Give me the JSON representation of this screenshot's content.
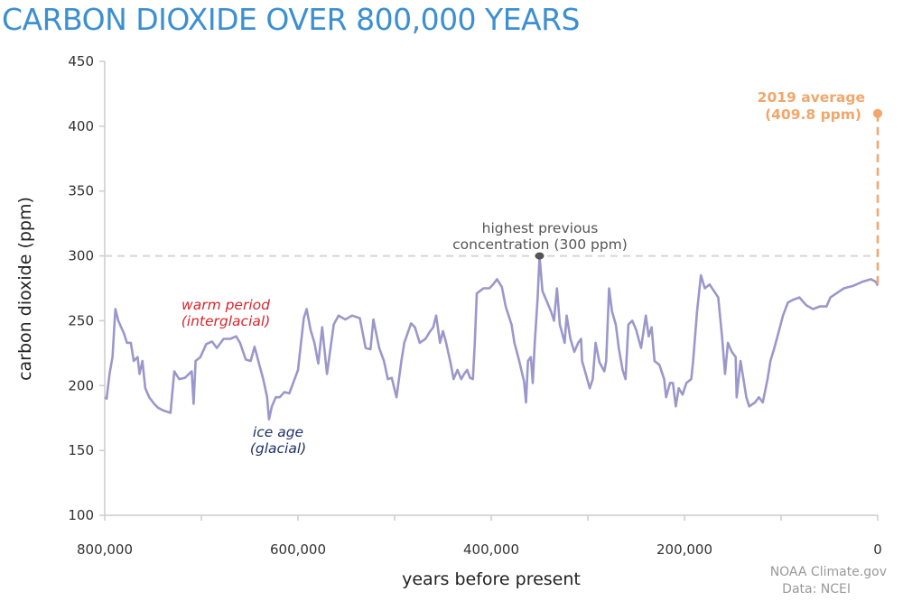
{
  "chart_data": {
    "type": "line",
    "title": "CARBON DIOXIDE OVER 800,000 YEARS",
    "xlabel": "years before present",
    "ylabel": "carbon dioxide (ppm)",
    "xlim": [
      800000,
      0
    ],
    "ylim": [
      100,
      450
    ],
    "x_ticks": [
      800000,
      700000,
      600000,
      500000,
      400000,
      300000,
      200000,
      100000,
      0
    ],
    "x_tick_labels": [
      "800,000",
      "",
      "600,000",
      "",
      "400,000",
      "",
      "200,000",
      "",
      "0"
    ],
    "y_ticks": [
      100,
      150,
      200,
      250,
      300,
      350,
      400,
      450
    ],
    "y_tick_labels": [
      "100",
      "150",
      "200",
      "250",
      "300",
      "350",
      "400",
      "450"
    ],
    "grid": false,
    "colors": {
      "series": "#9c97cb",
      "title": "#3c8fd0",
      "current": "#f2a66a",
      "highest": "#555555",
      "warm": "#d7262e",
      "ice": "#1f2f66",
      "reference_line": "#d5d5d5"
    },
    "series": [
      {
        "points": [
          [
            800000,
            191
          ],
          [
            798000,
            190
          ],
          [
            795000,
            209
          ],
          [
            792000,
            222
          ],
          [
            790000,
            247
          ],
          [
            789000,
            259
          ],
          [
            786000,
            250
          ],
          [
            783000,
            245
          ],
          [
            780000,
            240
          ],
          [
            777000,
            233
          ],
          [
            773000,
            233
          ],
          [
            770000,
            219
          ],
          [
            766000,
            222
          ],
          [
            764000,
            209
          ],
          [
            761000,
            219
          ],
          [
            758000,
            198
          ],
          [
            754000,
            191
          ],
          [
            749000,
            186
          ],
          [
            745000,
            183
          ],
          [
            740000,
            181
          ],
          [
            732000,
            179
          ],
          [
            728000,
            211
          ],
          [
            723000,
            205
          ],
          [
            717000,
            206
          ],
          [
            710000,
            211
          ],
          [
            708000,
            186
          ],
          [
            706000,
            219
          ],
          [
            701000,
            222
          ],
          [
            695000,
            232
          ],
          [
            689000,
            234
          ],
          [
            684000,
            229
          ],
          [
            677000,
            236
          ],
          [
            670000,
            236
          ],
          [
            664000,
            238
          ],
          [
            660000,
            233
          ],
          [
            654000,
            220
          ],
          [
            649000,
            219
          ],
          [
            645000,
            230
          ],
          [
            640000,
            216
          ],
          [
            636000,
            205
          ],
          [
            632000,
            191
          ],
          [
            630000,
            174
          ],
          [
            627000,
            184
          ],
          [
            623000,
            191
          ],
          [
            619000,
            191
          ],
          [
            614000,
            195
          ],
          [
            609000,
            194
          ],
          [
            600000,
            212
          ],
          [
            594000,
            252
          ],
          [
            591000,
            259
          ],
          [
            587000,
            243
          ],
          [
            583000,
            233
          ],
          [
            579000,
            217
          ],
          [
            575000,
            245
          ],
          [
            570000,
            209
          ],
          [
            563000,
            247
          ],
          [
            558000,
            254
          ],
          [
            551000,
            251
          ],
          [
            544000,
            254
          ],
          [
            536000,
            252
          ],
          [
            530000,
            229
          ],
          [
            525000,
            228
          ],
          [
            522000,
            251
          ],
          [
            516000,
            229
          ],
          [
            511000,
            219
          ],
          [
            507000,
            205
          ],
          [
            503000,
            206
          ],
          [
            498000,
            191
          ],
          [
            493000,
            219
          ],
          [
            490000,
            233
          ],
          [
            483000,
            248
          ],
          [
            479000,
            245
          ],
          [
            474000,
            233
          ],
          [
            468000,
            236
          ],
          [
            464000,
            241
          ],
          [
            460000,
            245
          ],
          [
            457000,
            254
          ],
          [
            453000,
            233
          ],
          [
            450000,
            242
          ],
          [
            447000,
            234
          ],
          [
            442000,
            217
          ],
          [
            439000,
            205
          ],
          [
            435000,
            212
          ],
          [
            431000,
            205
          ],
          [
            428000,
            209
          ],
          [
            425000,
            212
          ],
          [
            422000,
            206
          ],
          [
            419000,
            205
          ],
          [
            417000,
            233
          ],
          [
            415000,
            271
          ],
          [
            408000,
            275
          ],
          [
            402000,
            275
          ],
          [
            398000,
            278
          ],
          [
            394000,
            282
          ],
          [
            389000,
            276
          ],
          [
            385000,
            261
          ],
          [
            379000,
            247
          ],
          [
            376000,
            233
          ],
          [
            371000,
            219
          ],
          [
            366000,
            203
          ],
          [
            364000,
            187
          ],
          [
            362000,
            219
          ],
          [
            359000,
            222
          ],
          [
            357000,
            202
          ],
          [
            355000,
            233
          ],
          [
            352000,
            268
          ],
          [
            350000,
            300
          ],
          [
            347000,
            273
          ],
          [
            342000,
            264
          ],
          [
            338000,
            257
          ],
          [
            335000,
            250
          ],
          [
            332000,
            275
          ],
          [
            329000,
            247
          ],
          [
            324000,
            233
          ],
          [
            322000,
            254
          ],
          [
            318000,
            236
          ],
          [
            314000,
            226
          ],
          [
            310000,
            233
          ],
          [
            307000,
            236
          ],
          [
            306000,
            219
          ],
          [
            301000,
            206
          ],
          [
            298000,
            198
          ],
          [
            295000,
            205
          ],
          [
            292000,
            233
          ],
          [
            288000,
            218
          ],
          [
            283000,
            211
          ],
          [
            281000,
            219
          ],
          [
            278000,
            275
          ],
          [
            275000,
            257
          ],
          [
            271000,
            247
          ],
          [
            268000,
            229
          ],
          [
            264000,
            212
          ],
          [
            261000,
            205
          ],
          [
            258000,
            247
          ],
          [
            254000,
            250
          ],
          [
            250000,
            243
          ],
          [
            245000,
            229
          ],
          [
            240000,
            254
          ],
          [
            237000,
            238
          ],
          [
            234000,
            245
          ],
          [
            231000,
            219
          ],
          [
            226000,
            216
          ],
          [
            221000,
            205
          ],
          [
            219000,
            191
          ],
          [
            215000,
            202
          ],
          [
            212000,
            202
          ],
          [
            209000,
            184
          ],
          [
            206000,
            198
          ],
          [
            202000,
            193
          ],
          [
            198000,
            202
          ],
          [
            193000,
            205
          ],
          [
            191000,
            219
          ],
          [
            187000,
            257
          ],
          [
            183000,
            285
          ],
          [
            179000,
            275
          ],
          [
            174000,
            278
          ],
          [
            165000,
            268
          ],
          [
            161000,
            237
          ],
          [
            158000,
            209
          ],
          [
            155000,
            233
          ],
          [
            151000,
            226
          ],
          [
            147000,
            222
          ],
          [
            146000,
            191
          ],
          [
            142000,
            219
          ],
          [
            136000,
            191
          ],
          [
            133000,
            184
          ],
          [
            127000,
            187
          ],
          [
            123000,
            191
          ],
          [
            119000,
            187
          ],
          [
            114000,
            205
          ],
          [
            111000,
            219
          ],
          [
            107000,
            229
          ],
          [
            103000,
            240
          ],
          [
            98000,
            254
          ],
          [
            93000,
            264
          ],
          [
            88000,
            266
          ],
          [
            81000,
            268
          ],
          [
            74000,
            262
          ],
          [
            67000,
            259
          ],
          [
            60000,
            261
          ],
          [
            53000,
            261
          ],
          [
            49000,
            268
          ],
          [
            41000,
            272
          ],
          [
            35000,
            275
          ],
          [
            25000,
            277
          ],
          [
            16000,
            280
          ],
          [
            7000,
            282
          ],
          [
            2000,
            280
          ],
          [
            0,
            277
          ]
        ]
      }
    ],
    "annotations": {
      "highest_line1": "highest previous",
      "highest_line2": "concentration (300 ppm)",
      "highest_point": {
        "year": 350000,
        "ppm": 300
      },
      "current_line1": "2019 average",
      "current_line2": "(409.8 ppm)",
      "current_point": {
        "year": 0,
        "ppm": 409.8
      },
      "warm_line1": "warm period",
      "warm_line2": "(interglacial)",
      "ice_line1": "ice age",
      "ice_line2": "(glacial)"
    }
  },
  "credits": {
    "line1": "NOAA Climate.gov",
    "line2": "Data: NCEI"
  }
}
